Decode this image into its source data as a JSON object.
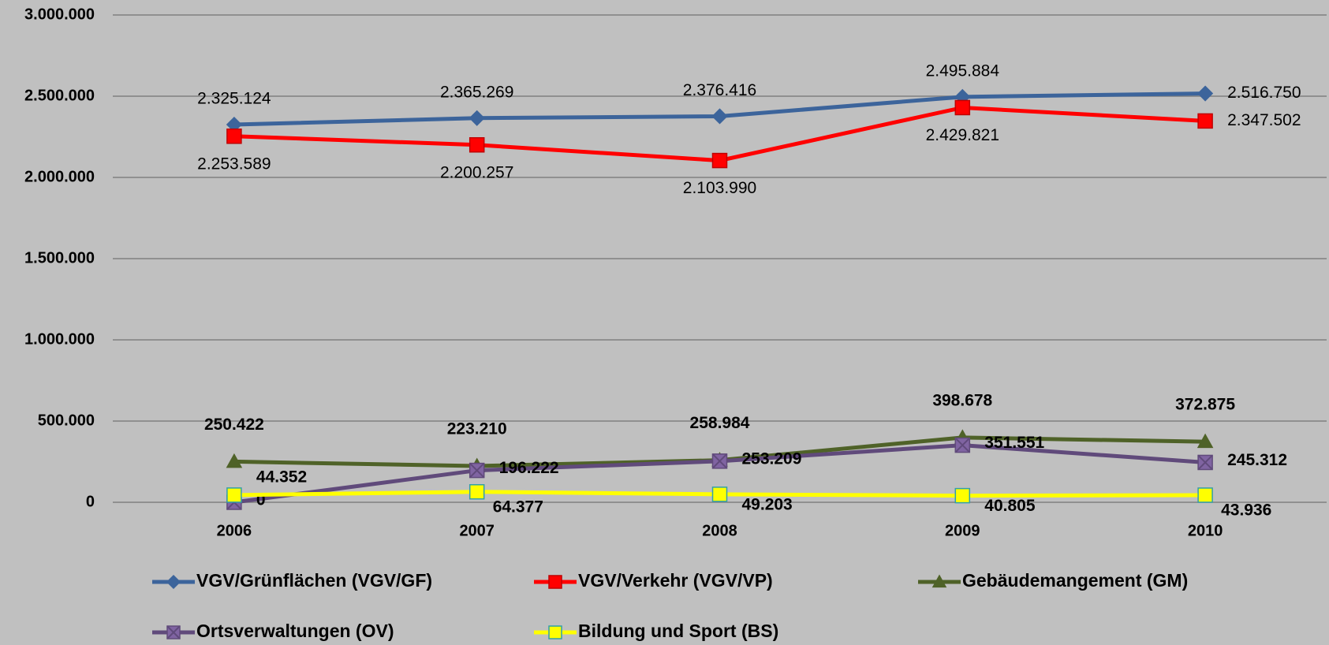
{
  "chart_data": {
    "type": "line",
    "categories": [
      "2006",
      "2007",
      "2008",
      "2009",
      "2010"
    ],
    "ylim": [
      0,
      3000000
    ],
    "yticks": [
      0,
      {
        "value": 500000,
        "label": "500.000"
      },
      {
        "value": 1000000,
        "label": "1.000.000"
      },
      {
        "value": 1500000,
        "label": "1.500.000"
      },
      {
        "value": 2000000,
        "label": "2.000.000"
      },
      {
        "value": 2500000,
        "label": "2.500.000"
      },
      {
        "value": 3000000,
        "label": "3.000.000"
      }
    ],
    "grid": true,
    "legend": "bottom",
    "series": [
      {
        "name": "VGV/Grünflächen (VGV/GF)",
        "color": "#3c649b",
        "marker": "diamond",
        "values": [
          2325124,
          2365269,
          2376416,
          2495884,
          2516750
        ],
        "value_labels": [
          "2.325.124",
          "2.365.269",
          "2.376.416",
          "2.495.884",
          "2.516.750"
        ]
      },
      {
        "name": "VGV/Verkehr (VGV/VP)",
        "color": "#ff0000",
        "marker": "square",
        "values": [
          2253589,
          2200257,
          2103990,
          2429821,
          2347502
        ],
        "value_labels": [
          "2.253.589",
          "2.200.257",
          "2.103.990",
          "2.429.821",
          "2.347.502"
        ]
      },
      {
        "name": "Gebäudemangement (GM)",
        "color": "#4f6228",
        "marker": "triangle",
        "values": [
          250422,
          223210,
          258984,
          398678,
          372875
        ],
        "value_labels": [
          "250.422",
          "223.210",
          "258.984",
          "398.678",
          "372.875"
        ]
      },
      {
        "name": "Ortsverwaltungen (OV)",
        "color": "#604a7b",
        "marker": "xsquare",
        "values": [
          0,
          196222,
          253209,
          351551,
          245312
        ],
        "value_labels": [
          0,
          "196.222",
          "253.209",
          "351.551",
          "245.312"
        ]
      },
      {
        "name": "Bildung und Sport (BS)",
        "color": "#ffff00",
        "marker": "square",
        "values": [
          44352,
          64377,
          49203,
          40805,
          43936
        ],
        "value_labels": [
          "44.352",
          "64.377",
          "49.203",
          "40.805",
          "43.936"
        ]
      }
    ]
  }
}
